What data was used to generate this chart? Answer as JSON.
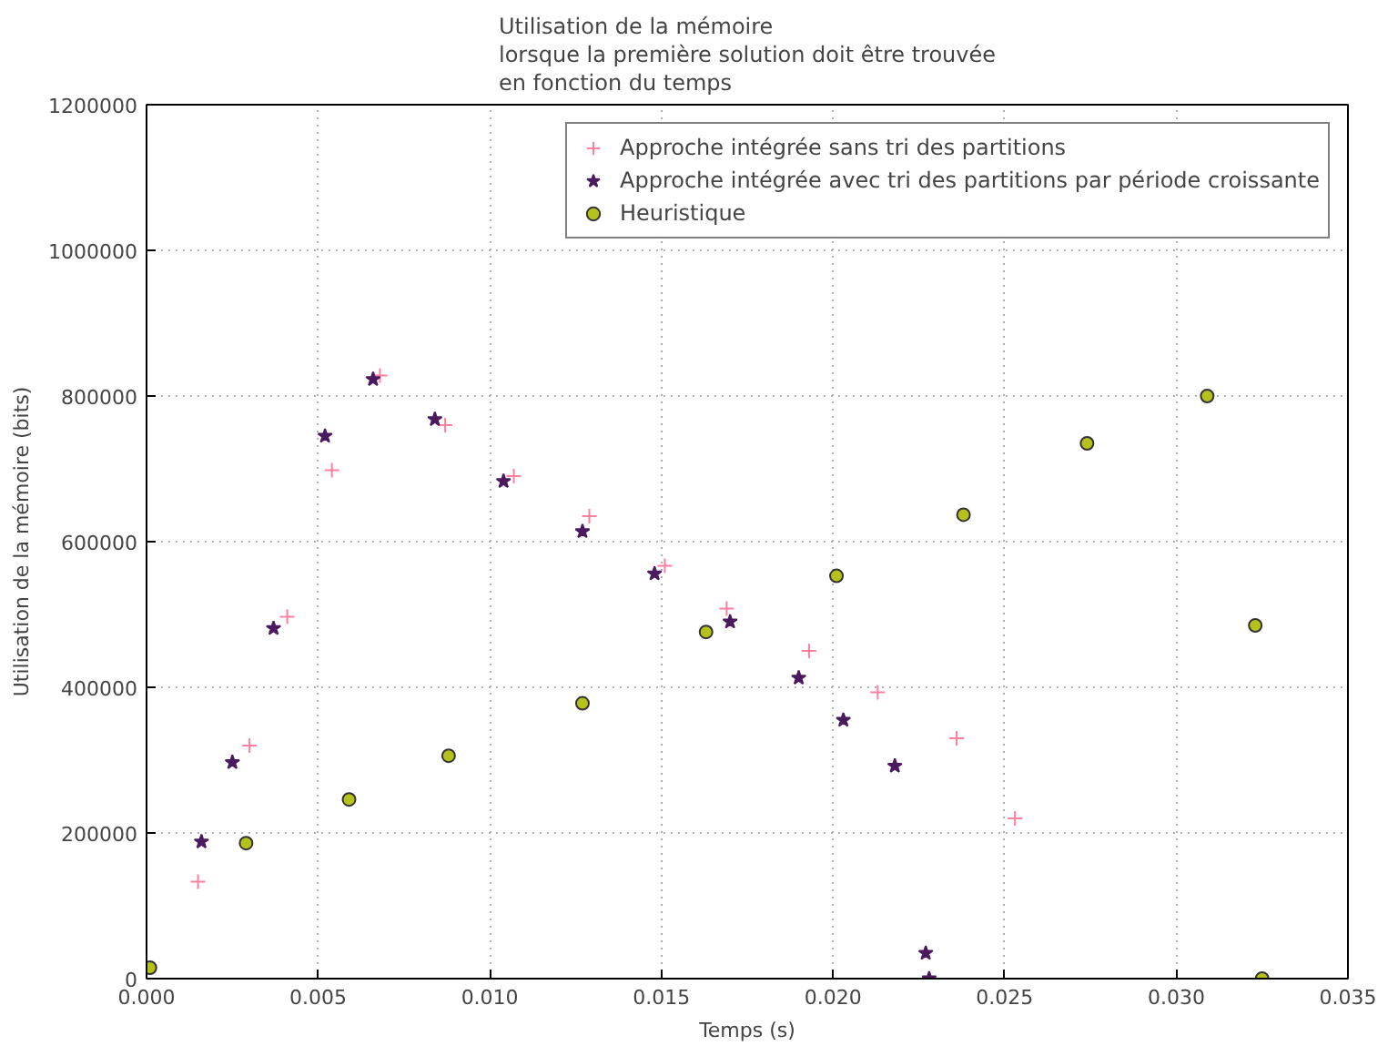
{
  "chart_data": {
    "type": "scatter",
    "title": "Utilisation de la mémoire\nlorsque la première solution doit être trouvée\nen fonction du temps",
    "xlabel": "Temps (s)",
    "ylabel": "Utilisation de la mémoire (bits)",
    "xlim": [
      0,
      0.035
    ],
    "ylim": [
      0,
      1200000
    ],
    "xticks": [
      {
        "value": 0,
        "label": "0.000"
      },
      {
        "value": 0.005,
        "label": "0.005"
      },
      {
        "value": 0.01,
        "label": "0.010"
      },
      {
        "value": 0.015,
        "label": "0.015"
      },
      {
        "value": 0.02,
        "label": "0.020"
      },
      {
        "value": 0.025,
        "label": "0.025"
      },
      {
        "value": 0.03,
        "label": "0.030"
      },
      {
        "value": 0.035,
        "label": "0.035"
      }
    ],
    "yticks": [
      0,
      200000,
      400000,
      600000,
      800000,
      1000000,
      1200000
    ],
    "grid": true,
    "legend": "top right",
    "series": [
      {
        "name": "Approche intégrée sans tri des partitions",
        "color": "#ff7f9f",
        "marker": "cross",
        "x": [
          0.0015,
          0.003,
          0.0041,
          0.0054,
          0.0068,
          0.0087,
          0.0107,
          0.0129,
          0.0151,
          0.0169,
          0.0193,
          0.0213,
          0.0236,
          0.0253
        ],
        "values": [
          133000,
          320000,
          497000,
          698000,
          828000,
          760000,
          690000,
          635000,
          567000,
          508000,
          450000,
          393000,
          330000,
          220000
        ]
      },
      {
        "name": "Approche intégrée avec tri des partitions par période croissante",
        "color": "#4b1a5f",
        "marker": "star",
        "x": [
          0.0016,
          0.0025,
          0.0037,
          0.0052,
          0.0066,
          0.0084,
          0.0104,
          0.0127,
          0.0148,
          0.017,
          0.019,
          0.0203,
          0.0218,
          0.0227,
          0.0228
        ],
        "values": [
          188000,
          297000,
          481000,
          745000,
          823000,
          768000,
          683000,
          614000,
          556000,
          490000,
          413000,
          355000,
          292000,
          35000,
          0
        ]
      },
      {
        "name": "Heuristique",
        "color": "#b5c21c",
        "marker": "circle",
        "x": [
          0.0001,
          0.0029,
          0.0059,
          0.0088,
          0.0127,
          0.0163,
          0.0201,
          0.0238,
          0.0274,
          0.0309,
          0.0323,
          0.0325
        ],
        "values": [
          15000,
          186000,
          246000,
          306000,
          378000,
          476000,
          553000,
          637000,
          735000,
          800000,
          485000,
          0
        ]
      }
    ]
  }
}
